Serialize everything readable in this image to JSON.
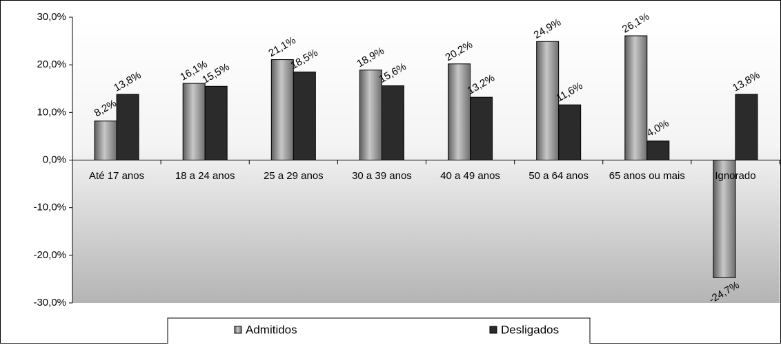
{
  "chart_data": {
    "type": "bar",
    "categories": [
      "Até 17 anos",
      "18 a 24 anos",
      "25 a 29 anos",
      "30 a 39 anos",
      "40 a 49 anos",
      "50 a 64 anos",
      "65 anos ou mais",
      "Ignorado"
    ],
    "series": [
      {
        "name": "Admitidos",
        "color": "#8c8c8c",
        "values": [
          8.2,
          16.1,
          21.1,
          18.9,
          20.2,
          24.9,
          26.1,
          -24.7
        ],
        "value_labels": [
          "8,2%",
          "16,1%",
          "21,1%",
          "18,9%",
          "20,2%",
          "24,9%",
          "26,1%",
          "-24,7%"
        ]
      },
      {
        "name": "Desligados",
        "color": "#2b2b2b",
        "values": [
          13.8,
          15.5,
          18.5,
          15.6,
          13.2,
          11.6,
          4.0,
          13.8
        ],
        "value_labels": [
          "13,8%",
          "15,5%",
          "18,5%",
          "15,6%",
          "13,2%",
          "11,6%",
          "4,0%",
          "13,8%"
        ]
      }
    ],
    "ylim": [
      -30,
      30
    ],
    "yticks": [
      {
        "value": -30,
        "label": "-30,0%"
      },
      {
        "value": -20,
        "label": "-20,0%"
      },
      {
        "value": -10,
        "label": "-10,0%"
      },
      {
        "value": 0,
        "label": "0,0%"
      },
      {
        "value": 10,
        "label": "10,0%"
      },
      {
        "value": 20,
        "label": "20,0%"
      },
      {
        "value": 30,
        "label": "30,0%"
      }
    ],
    "legend": "bottom"
  }
}
